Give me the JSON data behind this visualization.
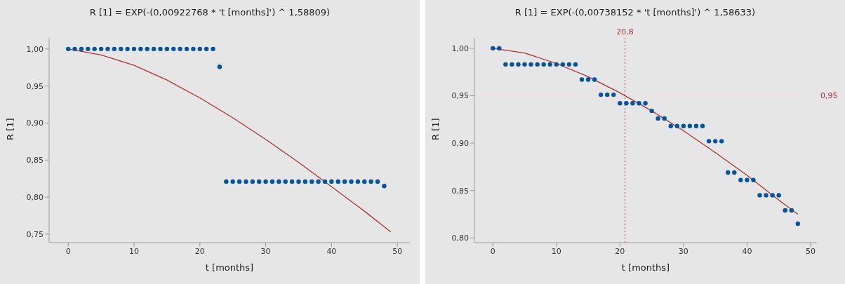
{
  "chart_data": [
    {
      "type": "scatter",
      "title": "R [1] = EXP(-(0,00922768 * 't [months]') ^ 1,58809)",
      "xlabel": "t [months]",
      "ylabel": "R [1]",
      "xlim": [
        -2.9,
        51.9
      ],
      "xticks": [
        0,
        10,
        20,
        30,
        40,
        50
      ],
      "ylim": [
        0.7385,
        1.015
      ],
      "yticks": [
        {
          "value": 0.75,
          "label": "0,75"
        },
        {
          "value": 0.8,
          "label": "0,80"
        },
        {
          "value": 0.85,
          "label": "0,85"
        },
        {
          "value": 0.9,
          "label": "0,90"
        },
        {
          "value": 0.95,
          "label": "0,95"
        },
        {
          "value": 1.0,
          "label": "1,00"
        }
      ],
      "series": [
        {
          "marker": "circle",
          "color": "#0054a6",
          "x": [
            0,
            1,
            2,
            3,
            4,
            5,
            6,
            7,
            8,
            9,
            10,
            11,
            12,
            13,
            14,
            15,
            16,
            17,
            18,
            19,
            20,
            21,
            22,
            23,
            24,
            25,
            26,
            27,
            28,
            29,
            30,
            31,
            32,
            33,
            34,
            35,
            36,
            37,
            38,
            39,
            40,
            41,
            42,
            43,
            44,
            45,
            46,
            47,
            48
          ],
          "values": [
            1.0,
            1.0,
            1.0,
            1.0,
            1.0,
            1.0,
            1.0,
            1.0,
            1.0,
            1.0,
            1.0,
            1.0,
            1.0,
            1.0,
            1.0,
            1.0,
            1.0,
            1.0,
            1.0,
            1.0,
            1.0,
            1.0,
            1.0,
            0.976,
            0.821,
            0.821,
            0.821,
            0.821,
            0.821,
            0.821,
            0.821,
            0.821,
            0.821,
            0.821,
            0.821,
            0.821,
            0.821,
            0.821,
            0.821,
            0.821,
            0.821,
            0.821,
            0.821,
            0.821,
            0.821,
            0.821,
            0.821,
            0.821,
            0.815
          ]
        },
        {
          "type": "line",
          "marker": "none",
          "color": "#b03030",
          "x": [
            0,
            5,
            10,
            15,
            20,
            25,
            30,
            35,
            40,
            45,
            49
          ],
          "values": [
            1.0,
            0.992,
            0.978,
            0.958,
            0.934,
            0.907,
            0.878,
            0.847,
            0.814,
            0.781,
            0.753
          ]
        }
      ]
    },
    {
      "type": "scatter",
      "title": "R [1] = EXP(-(0,00738152 * 't [months]') ^ 1,58633)",
      "xlabel": "t [months]",
      "ylabel": "R [1]",
      "xlim": [
        -2.9,
        51
      ],
      "xticks": [
        0,
        10,
        20,
        30,
        40,
        50
      ],
      "ylim": [
        0.795,
        1.011
      ],
      "yticks": [
        {
          "value": 0.8,
          "label": "0,80"
        },
        {
          "value": 0.85,
          "label": "0,85"
        },
        {
          "value": 0.9,
          "label": "0,90"
        },
        {
          "value": 0.95,
          "label": "0,95"
        },
        {
          "value": 1.0,
          "label": "1,00"
        }
      ],
      "ref_lines": [
        {
          "axis": "x",
          "value": 20.8,
          "label": "20,8",
          "color": "#b03030",
          "line_style": "dotted"
        },
        {
          "axis": "y",
          "value": 0.95,
          "label": "0,95",
          "color": "#f0e0e0",
          "line_style": "solid"
        }
      ],
      "series": [
        {
          "marker": "circle",
          "color": "#0054a6",
          "x": [
            0,
            1,
            2,
            3,
            4,
            5,
            6,
            7,
            8,
            9,
            10,
            11,
            12,
            13,
            14,
            15,
            16,
            17,
            18,
            19,
            20,
            21,
            22,
            23,
            24,
            25,
            26,
            27,
            28,
            29,
            30,
            31,
            32,
            33,
            34,
            35,
            36,
            37,
            38,
            39,
            40,
            41,
            42,
            43,
            44,
            45,
            46,
            47,
            48
          ],
          "values": [
            1.0,
            1.0,
            0.983,
            0.983,
            0.983,
            0.983,
            0.983,
            0.983,
            0.983,
            0.983,
            0.983,
            0.983,
            0.983,
            0.983,
            0.967,
            0.967,
            0.967,
            0.951,
            0.951,
            0.951,
            0.942,
            0.942,
            0.942,
            0.942,
            0.942,
            0.934,
            0.926,
            0.926,
            0.918,
            0.918,
            0.918,
            0.918,
            0.918,
            0.918,
            0.902,
            0.902,
            0.902,
            0.869,
            0.869,
            0.861,
            0.861,
            0.861,
            0.845,
            0.845,
            0.845,
            0.845,
            0.829,
            0.829,
            0.815
          ]
        },
        {
          "type": "line",
          "marker": "none",
          "color": "#b03030",
          "x": [
            0,
            5,
            10,
            15,
            20,
            25,
            30,
            35,
            40,
            45,
            48
          ],
          "values": [
            1.0,
            0.995,
            0.984,
            0.97,
            0.953,
            0.934,
            0.913,
            0.89,
            0.866,
            0.84,
            0.825
          ]
        }
      ]
    }
  ]
}
